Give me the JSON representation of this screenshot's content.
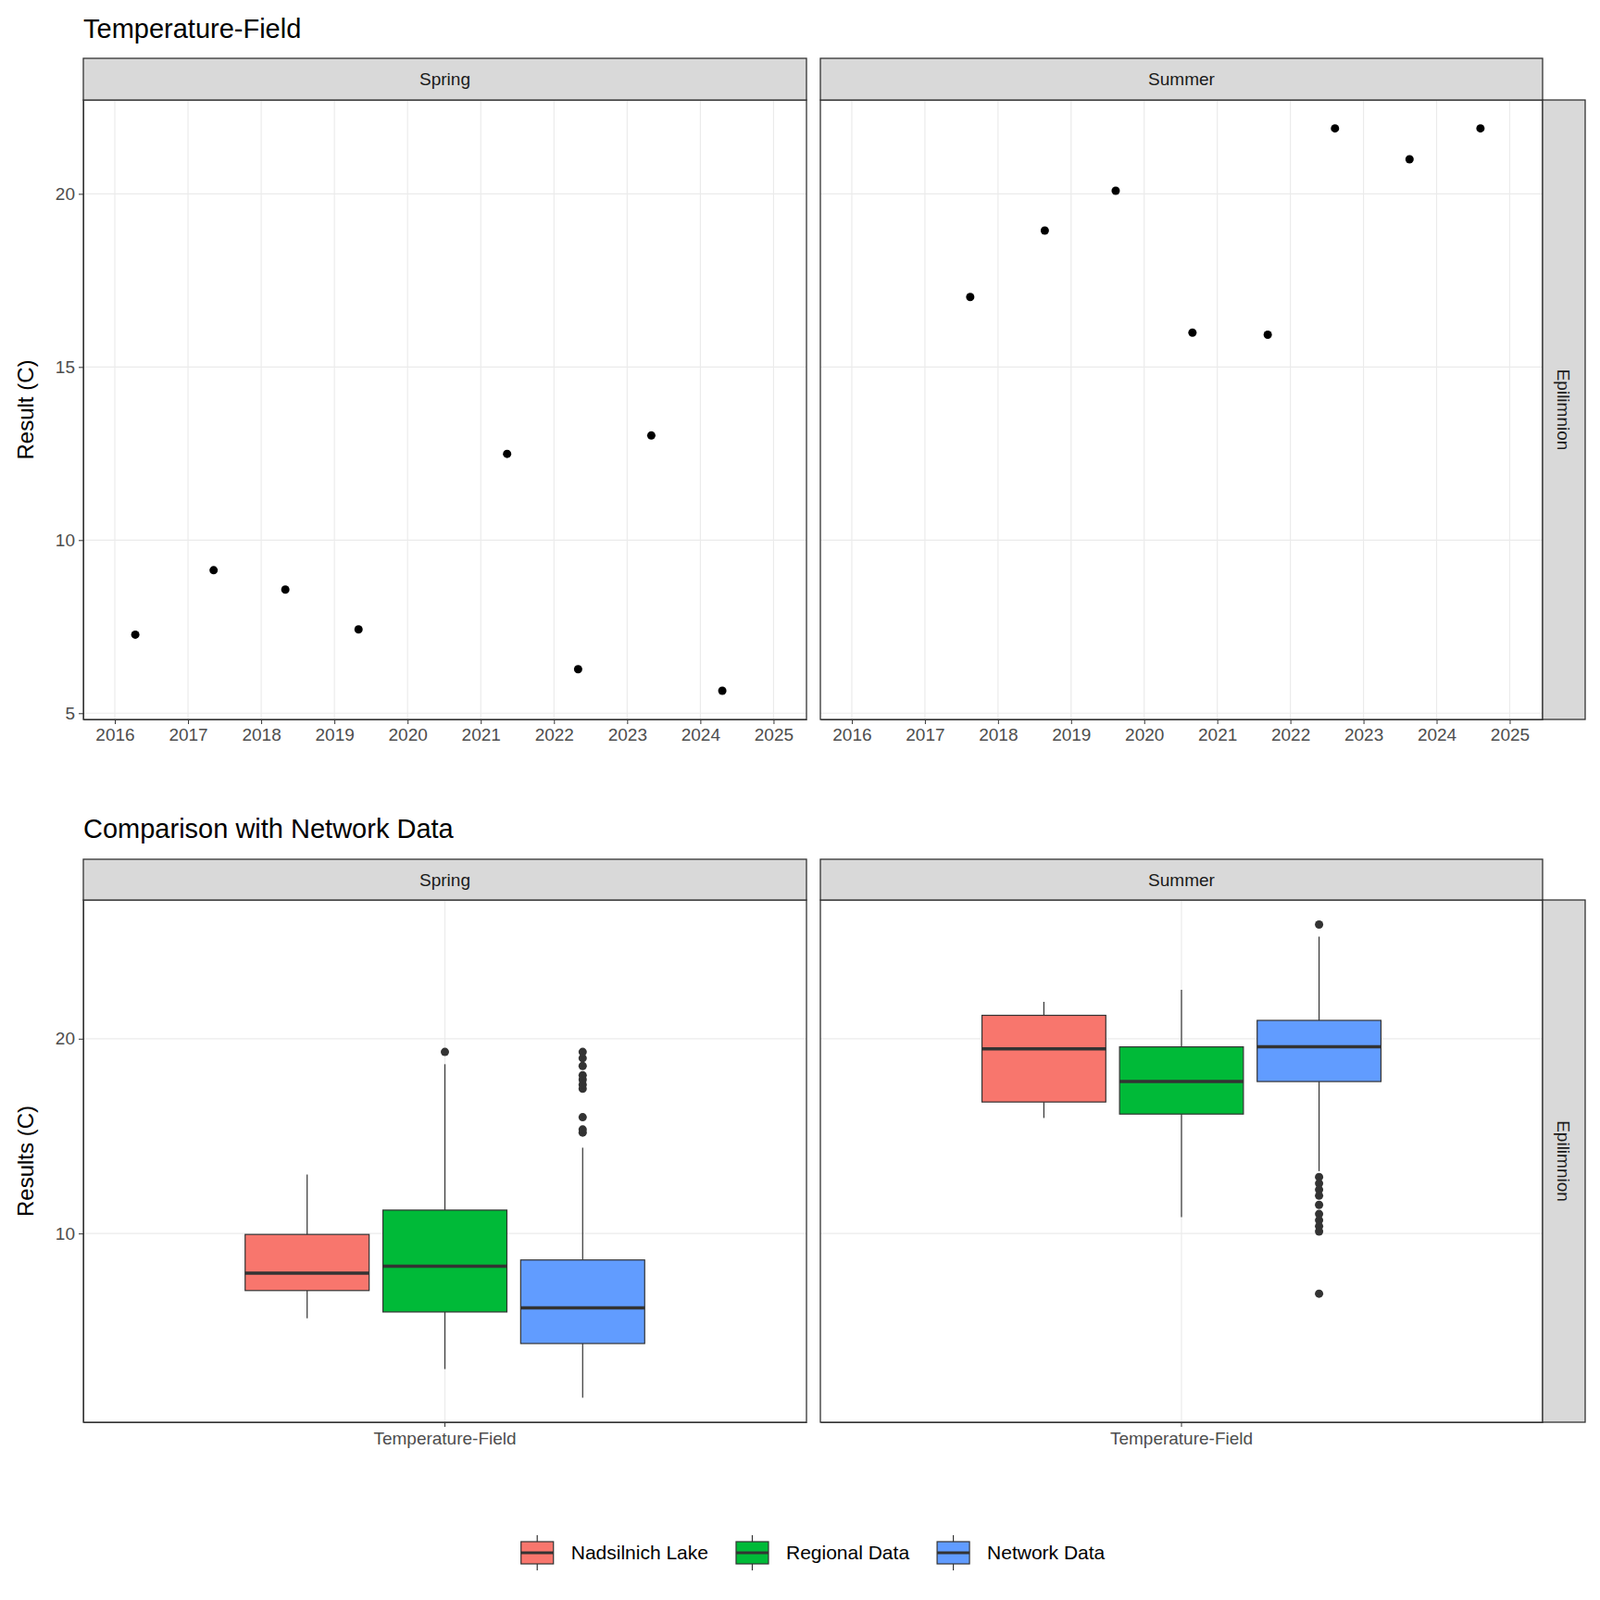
{
  "chart_data": [
    {
      "type": "scatter",
      "title": "Temperature-Field",
      "y_label": "Result (C)",
      "row_label": "Epilimnion",
      "color": "#000000",
      "grid": true,
      "xlim": [
        2015.57,
        2025.45
      ],
      "xticks": [
        2016,
        2017,
        2018,
        2019,
        2020,
        2021,
        2022,
        2023,
        2024,
        2025
      ],
      "ylim": [
        4.82,
        22.71
      ],
      "yticks": [
        5,
        10,
        15,
        20
      ],
      "panels": [
        {
          "label": "Spring",
          "x": [
            2016.28,
            2017.35,
            2018.33,
            2019.33,
            2021.36,
            2022.33,
            2023.33,
            2024.3
          ],
          "values": [
            7.27,
            9.13,
            8.57,
            7.42,
            12.49,
            6.27,
            13.02,
            5.65
          ]
        },
        {
          "label": "Summer",
          "x": [
            2017.62,
            2018.64,
            2019.61,
            2020.66,
            2021.69,
            2022.61,
            2023.63,
            2024.6
          ],
          "values": [
            17.02,
            18.94,
            20.09,
            15.99,
            15.93,
            21.89,
            21.0,
            21.89
          ]
        }
      ]
    },
    {
      "type": "box",
      "title": "Comparison with Network Data",
      "y_label": "Results (C)",
      "row_label": "Epilimnion",
      "categories": [
        "Temperature-Field"
      ],
      "grid": true,
      "legend": "bottom",
      "ylim": [
        0.31,
        27.12
      ],
      "yticks": [
        10,
        20
      ],
      "series": [
        {
          "name": "Nadsilnich Lake",
          "color": "#F8766D"
        },
        {
          "name": "Regional Data",
          "color": "#00BA38"
        },
        {
          "name": "Network Data",
          "color": "#619CFF"
        }
      ],
      "panels": [
        {
          "label": "Spring",
          "boxes": [
            {
              "min": 5.65,
              "q1": 7.07,
              "median": 7.96,
              "q3": 9.95,
              "max": 13.02,
              "outliers": []
            },
            {
              "min": 3.04,
              "q1": 5.97,
              "median": 8.32,
              "q3": 11.2,
              "max": 18.69,
              "outliers": [
                19.32
              ]
            },
            {
              "min": 1.57,
              "q1": 4.35,
              "median": 6.18,
              "q3": 8.64,
              "max": 14.4,
              "outliers": [
                15.18,
                15.34,
                15.97,
                17.43,
                17.64,
                17.9,
                18.12,
                18.6,
                19.0,
                19.32
              ]
            }
          ]
        },
        {
          "label": "Summer",
          "boxes": [
            {
              "min": 15.93,
              "q1": 16.75,
              "median": 19.48,
              "q3": 21.2,
              "max": 21.89,
              "outliers": []
            },
            {
              "min": 10.84,
              "q1": 16.13,
              "median": 17.8,
              "q3": 19.58,
              "max": 22.51,
              "outliers": []
            },
            {
              "min": 13.2,
              "q1": 17.8,
              "median": 19.58,
              "q3": 20.94,
              "max": 25.24,
              "outliers": [
                25.86,
                12.9,
                12.57,
                12.25,
                11.94,
                11.47,
                11.0,
                10.68,
                10.37,
                10.1,
                6.91
              ]
            }
          ]
        }
      ]
    }
  ]
}
